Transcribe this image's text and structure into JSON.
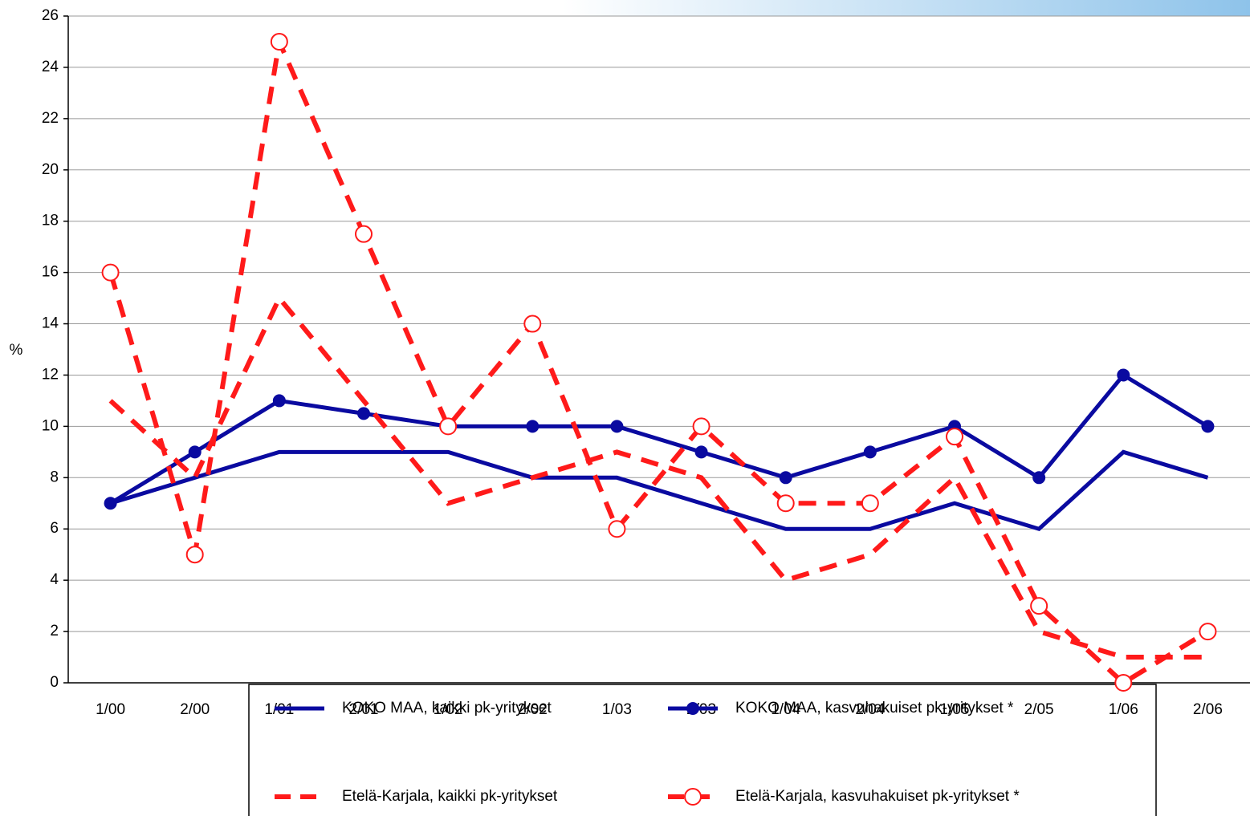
{
  "chart_data": {
    "type": "line",
    "y_label": "%",
    "categories": [
      "1/00",
      "2/00",
      "1/01",
      "2/01",
      "1/02",
      "2/02",
      "1/03",
      "2/03",
      "1/04",
      "2/04",
      "1/05",
      "2/05",
      "1/06",
      "2/06"
    ],
    "series": [
      {
        "name": "KOKO MAA, kaikki pk-yritykset",
        "color": "#0a0aa0",
        "dash": false,
        "marker": "none",
        "values": [
          7,
          8,
          9,
          9,
          9,
          8,
          8,
          7,
          6,
          6,
          7,
          6,
          9,
          8
        ]
      },
      {
        "name": "KOKO MAA, kasvuhakuiset pk-yritykset *",
        "color": "#0a0aa0",
        "dash": false,
        "marker": "filled",
        "values": [
          7,
          9,
          11,
          10.5,
          10,
          10,
          10,
          9,
          8,
          9,
          10,
          8,
          12,
          10
        ]
      },
      {
        "name": "Etelä-Karjala, kaikki pk-yritykset",
        "color": "#ff1a1a",
        "dash": true,
        "marker": "none",
        "values": [
          11,
          8,
          15,
          11,
          7,
          8,
          9,
          8,
          4,
          5,
          8,
          2,
          1,
          1
        ]
      },
      {
        "name": "Etelä-Karjala, kasvuhakuiset pk-yritykset *",
        "color": "#ff1a1a",
        "dash": true,
        "marker": "open",
        "values": [
          16,
          5,
          25,
          17.5,
          10,
          14,
          6,
          10,
          7,
          7,
          9.6,
          3,
          0,
          2
        ]
      }
    ],
    "ylim": [
      0,
      26
    ],
    "yticks": [
      0,
      2,
      4,
      6,
      8,
      10,
      12,
      14,
      16,
      18,
      20,
      22,
      24,
      26
    ],
    "grid": true,
    "legend": "bottom"
  }
}
